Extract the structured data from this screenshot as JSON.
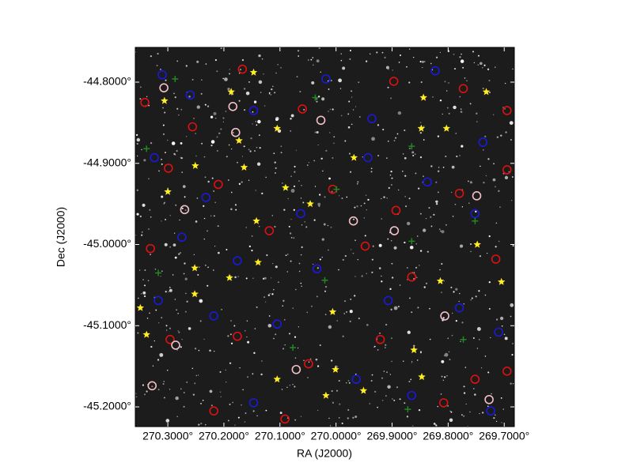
{
  "chart_data": {
    "type": "scatter",
    "x_label": "RA (J2000)",
    "y_label": "Dec (J2000)",
    "xlim": [
      270.358,
      269.682
    ],
    "ylim": [
      -45.2243,
      -44.7572
    ],
    "xticks": [
      {
        "value": 270.3,
        "label": "270.3000°"
      },
      {
        "value": 270.2,
        "label": "270.2000°"
      },
      {
        "value": 270.1,
        "label": "270.1000°"
      },
      {
        "value": 270.0,
        "label": "270.0000°"
      },
      {
        "value": 269.9,
        "label": "269.9000°"
      },
      {
        "value": 269.8,
        "label": "269.8000°"
      },
      {
        "value": 269.7,
        "label": "269.7000°"
      }
    ],
    "yticks": [
      {
        "value": -44.8,
        "label": "-44.8000°"
      },
      {
        "value": -44.9,
        "label": "-44.9000°"
      },
      {
        "value": -45.0,
        "label": "-45.0000°"
      },
      {
        "value": -45.1,
        "label": "-45.1000°"
      },
      {
        "value": -45.2,
        "label": "-45.2000°"
      }
    ],
    "series": [
      {
        "color": "#dd1111",
        "marker": "circle",
        "x": [
          270.341,
          270.256,
          270.167,
          270.06,
          269.897,
          269.773,
          269.695,
          270.299,
          270.21,
          270.006,
          269.893,
          269.78,
          269.695,
          270.331,
          270.119,
          269.948,
          269.865,
          269.715,
          270.296,
          270.176,
          270.049,
          269.921,
          269.752,
          270.218,
          270.091,
          269.808,
          269.695
        ],
        "y": [
          -44.825,
          -44.855,
          -44.784,
          -44.833,
          -44.799,
          -44.808,
          -44.835,
          -44.906,
          -44.926,
          -44.932,
          -44.958,
          -44.937,
          -44.908,
          -45.005,
          -44.983,
          -45.002,
          -45.04,
          -45.018,
          -45.117,
          -45.113,
          -45.147,
          -45.117,
          -45.166,
          -45.205,
          -45.215,
          -45.195,
          -45.156
        ]
      },
      {
        "color": "#1a1ad8",
        "marker": "circle",
        "x": [
          270.31,
          270.26,
          270.147,
          270.018,
          269.936,
          269.823,
          269.738,
          270.324,
          270.232,
          270.063,
          269.943,
          269.837,
          269.752,
          270.275,
          270.176,
          270.034,
          269.907,
          269.78,
          269.71,
          270.317,
          270.218,
          270.105,
          269.964,
          269.865,
          269.724,
          270.147
        ],
        "y": [
          -44.791,
          -44.816,
          -44.835,
          -44.796,
          -44.845,
          -44.786,
          -44.874,
          -44.893,
          -44.942,
          -44.962,
          -44.893,
          -44.923,
          -44.962,
          -44.991,
          -45.02,
          -45.03,
          -45.069,
          -45.078,
          -45.108,
          -45.069,
          -45.088,
          -45.098,
          -45.166,
          -45.186,
          -45.205,
          -45.195
        ]
      },
      {
        "color": "#f4c0c8",
        "marker": "circle",
        "x": [
          270.307,
          270.184,
          270.27,
          270.027,
          269.969,
          269.749,
          269.896,
          269.806,
          270.286,
          270.071,
          270.328,
          269.727,
          270.179
        ],
        "y": [
          -44.807,
          -44.83,
          -44.957,
          -44.847,
          -44.971,
          -44.94,
          -44.983,
          -45.088,
          -45.124,
          -45.154,
          -45.174,
          -45.191,
          -44.862
        ]
      },
      {
        "color": "#228822",
        "marker": "cross",
        "x": [
          270.287,
          270.037,
          270.338,
          269.999,
          269.865,
          269.865,
          270.02,
          270.317,
          269.773,
          269.872,
          270.077,
          269.752
        ],
        "y": [
          -44.796,
          -44.819,
          -44.882,
          -44.932,
          -44.879,
          -44.996,
          -45.044,
          -45.035,
          -45.117,
          -45.203,
          -45.127,
          -44.971
        ]
      },
      {
        "color": "#ffee22",
        "marker": "star",
        "x": [
          270.147,
          270.187,
          270.306,
          270.105,
          270.173,
          270.251,
          270.164,
          270.09,
          270.3,
          269.968,
          270.046,
          270.142,
          269.748,
          270.139,
          270.252,
          270.19,
          269.814,
          269.705,
          270.252,
          270.349,
          270.006,
          270.338,
          269.861,
          270.001,
          269.847,
          270.105,
          270.018,
          269.951,
          269.848,
          269.803,
          269.732,
          269.844
        ],
        "y": [
          -44.788,
          -44.812,
          -44.823,
          -44.857,
          -44.872,
          -44.903,
          -44.905,
          -44.93,
          -44.935,
          -44.893,
          -44.95,
          -44.971,
          -45.0,
          -45.022,
          -45.029,
          -45.041,
          -45.045,
          -45.046,
          -45.061,
          -45.078,
          -45.083,
          -45.111,
          -45.13,
          -45.154,
          -45.163,
          -45.166,
          -45.186,
          -45.18,
          -44.857,
          -44.857,
          -44.812,
          -44.819
        ]
      }
    ]
  }
}
